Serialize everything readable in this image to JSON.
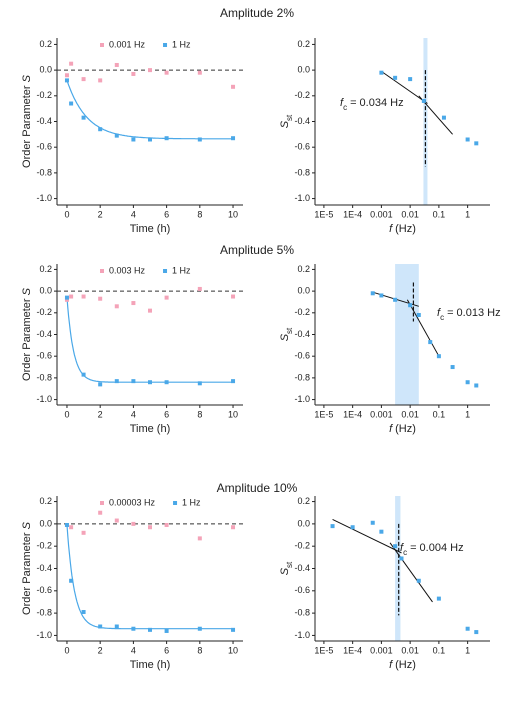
{
  "panel_titles": [
    "Amplitude 2%",
    "Amplitude 5%",
    "Amplitude 10%"
  ],
  "chart_data": [
    {
      "type": "scatter",
      "xlabel": "Time (h)",
      "ylabel": {
        "text": "Order Parameter",
        "symbol": "S"
      },
      "x": [
        0,
        0.25,
        1,
        2,
        3,
        4,
        5,
        6,
        8,
        10
      ],
      "series": [
        {
          "name": "0.001 Hz",
          "color": "#f4a3b8",
          "values": [
            -0.04,
            0.05,
            -0.07,
            -0.08,
            0.04,
            -0.03,
            0.0,
            -0.02,
            -0.02,
            -0.13
          ]
        },
        {
          "name": "1 Hz",
          "color": "#4aa8e8",
          "values": [
            -0.08,
            -0.26,
            -0.37,
            -0.46,
            -0.51,
            -0.54,
            -0.54,
            -0.53,
            -0.54,
            -0.53
          ]
        }
      ],
      "fit": {
        "y0": -0.08,
        "plateau": -0.535,
        "tau": 1.2,
        "color": "#4aa8e8"
      },
      "reference_line": 0,
      "legend": "upper center",
      "xlim": [
        -0.6,
        10.6
      ],
      "xticks": [
        0,
        2,
        4,
        6,
        8,
        10
      ],
      "ylim": [
        -1.05,
        0.25
      ],
      "yticks": [
        {
          "value": -1.0,
          "label": "-1.0"
        },
        -0.8,
        -0.6,
        -0.4,
        -0.2,
        {
          "value": 0,
          "label": "0.0"
        },
        0.2
      ]
    },
    {
      "type": "scatter",
      "xscale": "log",
      "xlabel": {
        "symbol": "f",
        "text": "(Hz)"
      },
      "ylabel": {
        "symbol": "S",
        "sub": "st"
      },
      "x": [
        0.001,
        0.003,
        0.01,
        0.03,
        0.15,
        1,
        2
      ],
      "series": [
        {
          "color": "#4aa8e8",
          "values": [
            -0.02,
            -0.06,
            -0.07,
            -0.24,
            -0.37,
            -0.54,
            -0.57
          ]
        }
      ],
      "fit_lines": [
        {
          "x": [
            0.001,
            0.04
          ],
          "values": [
            -0.01,
            -0.26
          ]
        },
        {
          "x": [
            0.02,
            0.3
          ],
          "values": [
            -0.2,
            -0.5
          ]
        }
      ],
      "band": [
        0.029,
        0.04
      ],
      "band_color": "#cfe6fa",
      "cutoff_line": {
        "x": 0.034,
        "y": [
          0.0,
          -0.75
        ]
      },
      "annotation": {
        "symbol": "f",
        "sub": "c",
        "text": "= 0.034 Hz"
      },
      "xlim": [
        4.9e-06,
        6
      ],
      "xticks": [
        {
          "value": 1e-05,
          "label": "1E-5"
        },
        {
          "value": 0.0001,
          "label": "1E-4"
        },
        0.001,
        0.01,
        0.1,
        1
      ],
      "ylim": [
        -1.05,
        0.25
      ],
      "yticks": [
        {
          "value": -1.0,
          "label": "-1.0"
        },
        -0.8,
        -0.6,
        -0.4,
        -0.2,
        {
          "value": 0,
          "label": "0.0"
        },
        0.2
      ]
    },
    {
      "type": "scatter",
      "xlabel": "Time (h)",
      "ylabel": {
        "text": "Order Parameter",
        "symbol": "S"
      },
      "x": [
        0,
        0.25,
        1,
        2,
        3,
        4,
        5,
        6,
        8,
        10
      ],
      "series": [
        {
          "name": "0.003 Hz",
          "color": "#f4a3b8",
          "values": [
            -0.08,
            -0.05,
            -0.05,
            -0.07,
            -0.14,
            -0.11,
            -0.18,
            -0.06,
            0.02,
            -0.05
          ]
        },
        {
          "name": "1 Hz",
          "color": "#4aa8e8",
          "values": [
            -0.06,
            null,
            -0.77,
            -0.86,
            -0.83,
            -0.83,
            -0.84,
            -0.84,
            -0.85,
            -0.83
          ]
        }
      ],
      "fit": {
        "y0": -0.06,
        "plateau": -0.84,
        "tau": 0.4,
        "color": "#4aa8e8"
      },
      "reference_line": 0,
      "legend": "upper center",
      "xlim": [
        -0.6,
        10.6
      ],
      "xticks": [
        0,
        2,
        4,
        6,
        8,
        10
      ],
      "ylim": [
        -1.05,
        0.25
      ],
      "yticks": [
        {
          "value": -1.0,
          "label": "-1.0"
        },
        -0.8,
        -0.6,
        -0.4,
        -0.2,
        {
          "value": 0,
          "label": "0.0"
        },
        0.2
      ]
    },
    {
      "type": "scatter",
      "xscale": "log",
      "xlabel": {
        "symbol": "f",
        "text": "(Hz)"
      },
      "ylabel": {
        "symbol": "S",
        "sub": "st"
      },
      "x": [
        0.0005,
        0.001,
        0.003,
        0.01,
        0.02,
        0.05,
        0.1,
        0.3,
        1,
        2
      ],
      "series": [
        {
          "color": "#4aa8e8",
          "values": [
            -0.02,
            -0.04,
            -0.08,
            -0.13,
            -0.22,
            -0.47,
            -0.6,
            -0.7,
            -0.84,
            -0.87
          ]
        }
      ],
      "fit_lines": [
        {
          "x": [
            0.0005,
            0.02
          ],
          "values": [
            -0.01,
            -0.14
          ]
        },
        {
          "x": [
            0.008,
            0.1
          ],
          "values": [
            -0.08,
            -0.6
          ]
        }
      ],
      "band": [
        0.003,
        0.02
      ],
      "band_color": "#cfe6fa",
      "cutoff_line": {
        "x": 0.013,
        "y": [
          0.08,
          -0.28
        ]
      },
      "annotation": {
        "symbol": "f",
        "sub": "c",
        "text": "= 0.013 Hz"
      },
      "xlim": [
        4.9e-06,
        6
      ],
      "xticks": [
        {
          "value": 1e-05,
          "label": "1E-5"
        },
        {
          "value": 0.0001,
          "label": "1E-4"
        },
        0.001,
        0.01,
        0.1,
        1
      ],
      "ylim": [
        -1.05,
        0.25
      ],
      "yticks": [
        {
          "value": -1.0,
          "label": "-1.0"
        },
        -0.8,
        -0.6,
        -0.4,
        -0.2,
        {
          "value": 0,
          "label": "0.0"
        },
        0.2
      ]
    },
    {
      "type": "scatter",
      "xlabel": "Time (h)",
      "ylabel": {
        "text": "Order Parameter",
        "symbol": "S"
      },
      "x": [
        0,
        0.25,
        1,
        2,
        3,
        4,
        5,
        6,
        8,
        10
      ],
      "series": [
        {
          "name": "0.00003 Hz",
          "color": "#f4a3b8",
          "values": [
            -0.01,
            -0.03,
            -0.08,
            0.1,
            0.03,
            0.0,
            -0.03,
            -0.01,
            -0.13,
            -0.03
          ]
        },
        {
          "name": "1 Hz",
          "color": "#4aa8e8",
          "values": [
            -0.01,
            -0.51,
            -0.79,
            -0.92,
            -0.92,
            -0.94,
            -0.95,
            -0.96,
            -0.94,
            -0.95
          ]
        }
      ],
      "fit": {
        "y0": -0.01,
        "plateau": -0.94,
        "tau": 0.45,
        "color": "#4aa8e8"
      },
      "reference_line": 0,
      "legend": "upper center",
      "xlim": [
        -0.6,
        10.6
      ],
      "xticks": [
        0,
        2,
        4,
        6,
        8,
        10
      ],
      "ylim": [
        -1.05,
        0.25
      ],
      "yticks": [
        {
          "value": -1.0,
          "label": "-1.0"
        },
        -0.8,
        -0.6,
        -0.4,
        -0.2,
        {
          "value": 0,
          "label": "0.0"
        },
        0.2
      ]
    },
    {
      "type": "scatter",
      "xscale": "log",
      "xlabel": {
        "symbol": "f",
        "text": "(Hz)"
      },
      "ylabel": {
        "symbol": "S",
        "sub": "st"
      },
      "x": [
        2e-05,
        0.0001,
        0.0005,
        0.001,
        0.003,
        0.005,
        0.02,
        0.1,
        1,
        2
      ],
      "series": [
        {
          "color": "#4aa8e8",
          "values": [
            -0.02,
            -0.03,
            0.01,
            -0.07,
            -0.2,
            -0.31,
            -0.51,
            -0.67,
            -0.94,
            -0.97
          ]
        }
      ],
      "fit_lines": [
        {
          "x": [
            2e-05,
            0.005
          ],
          "values": [
            0.04,
            -0.26
          ]
        },
        {
          "x": [
            0.002,
            0.06
          ],
          "values": [
            -0.17,
            -0.7
          ]
        }
      ],
      "band": [
        0.003,
        0.0046
      ],
      "band_color": "#cfe6fa",
      "cutoff_line": {
        "x": 0.004,
        "y": [
          0.0,
          -0.82
        ]
      },
      "annotation": {
        "symbol": "f",
        "sub": "c",
        "text": "= 0.004 Hz"
      },
      "xlim": [
        4.9e-06,
        6
      ],
      "xticks": [
        {
          "value": 1e-05,
          "label": "1E-5"
        },
        {
          "value": 0.0001,
          "label": "1E-4"
        },
        0.001,
        0.01,
        0.1,
        1
      ],
      "ylim": [
        -1.05,
        0.25
      ],
      "yticks": [
        {
          "value": -1.0,
          "label": "-1.0"
        },
        -0.8,
        -0.6,
        -0.4,
        -0.2,
        {
          "value": 0,
          "label": "0.0"
        },
        0.2
      ]
    }
  ]
}
